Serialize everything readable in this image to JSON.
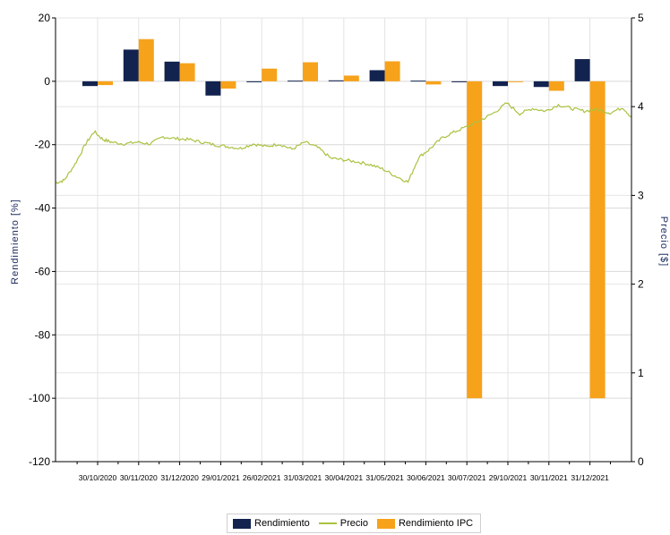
{
  "chart_data": {
    "type": "bar+line",
    "categories": [
      "30/10/2020",
      "30/11/2020",
      "31/12/2020",
      "29/01/2021",
      "26/02/2021",
      "31/03/2021",
      "30/04/2021",
      "31/05/2021",
      "30/06/2021",
      "30/07/2021",
      "29/10/2021",
      "30/11/2021",
      "31/12/2021"
    ],
    "series": [
      {
        "name": "Rendimiento",
        "type": "bar",
        "axis": "left",
        "color": "#13234f",
        "values": [
          -1.5,
          10,
          6.2,
          -4.5,
          -0.3,
          0.2,
          0.3,
          3.5,
          0.2,
          -0.3,
          -1.5,
          -1.8,
          7
        ]
      },
      {
        "name": "Rendimiento IPC",
        "type": "bar",
        "axis": "left",
        "color": "#f7a21b",
        "values": [
          -1.2,
          13.3,
          5.7,
          -2.3,
          4,
          6,
          1.8,
          6.3,
          -1,
          -100,
          -0.2,
          -3,
          -100
        ]
      },
      {
        "name": "Precio",
        "type": "line",
        "axis": "right",
        "color": "#a9c23f",
        "x": [
          0,
          0.2,
          0.45,
          0.7,
          0.9,
          1.1,
          1.3,
          1.6,
          1.9,
          2.2,
          2.5,
          2.8,
          3.1,
          3.4,
          3.7,
          4.0,
          4.3,
          4.6,
          4.9,
          5.2,
          5.5,
          5.8,
          6.1,
          6.4,
          6.7,
          7.0,
          7.3,
          7.6,
          7.9,
          8.2,
          8.45,
          8.7,
          9.0,
          9.3,
          9.6,
          9.9,
          10.2,
          10.5,
          10.8,
          11.1,
          11.4,
          11.7,
          12.0,
          12.3,
          12.6,
          12.9,
          13.2,
          13.4
        ],
        "values": [
          3.14,
          3.17,
          3.35,
          3.58,
          3.72,
          3.63,
          3.6,
          3.58,
          3.6,
          3.58,
          3.66,
          3.64,
          3.63,
          3.6,
          3.57,
          3.55,
          3.53,
          3.58,
          3.55,
          3.58,
          3.52,
          3.6,
          3.54,
          3.42,
          3.4,
          3.38,
          3.35,
          3.3,
          3.22,
          3.15,
          3.43,
          3.52,
          3.65,
          3.72,
          3.78,
          3.85,
          3.93,
          4.04,
          3.92,
          3.98,
          3.95,
          4.02,
          3.98,
          3.95,
          3.97,
          3.93,
          3.99,
          3.88
        ]
      }
    ],
    "xlabel": "",
    "ylabel": "Rendimiento [%]",
    "ylabel_right": "Precio [$]",
    "ylim": [
      -120,
      20
    ],
    "ylim_right": [
      0,
      5
    ],
    "yticks": [
      "20",
      "0",
      "-20",
      "-40",
      "-60",
      "-80",
      "-100",
      "-120"
    ],
    "yticks_right": [
      "5",
      "4",
      "3",
      "2",
      "1",
      "0"
    ],
    "grid": true,
    "legend": "bottom-center"
  },
  "legend": {
    "items": [
      {
        "label": "Rendimiento",
        "color": "#13234f",
        "kind": "bar"
      },
      {
        "label": "Precio",
        "color": "#a9c23f",
        "kind": "line"
      },
      {
        "label": "Rendimiento IPC",
        "color": "#f7a21b",
        "kind": "bar"
      }
    ]
  }
}
